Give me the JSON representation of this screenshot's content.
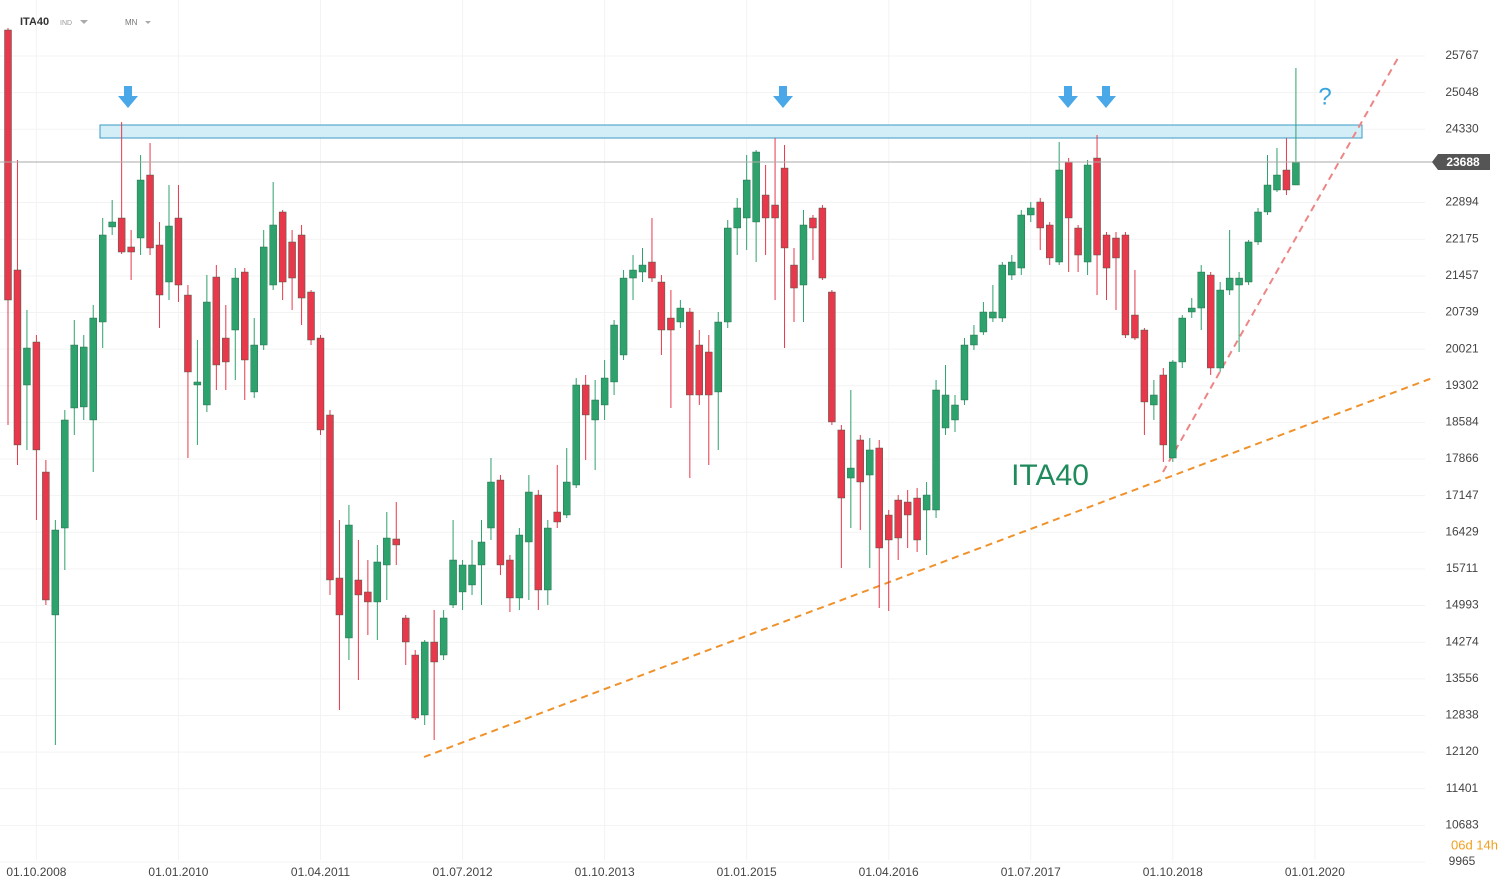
{
  "header": {
    "symbol": "ITA40",
    "market": "IND",
    "interval": "MN"
  },
  "chart_data": {
    "type": "candlestick",
    "x": [
      "01.07.2008",
      "01.08.2008",
      "01.09.2008",
      "01.10.2008",
      "01.11.2008",
      "01.12.2008",
      "01.01.2009",
      "01.02.2009",
      "01.03.2009",
      "01.04.2009",
      "01.05.2009",
      "01.06.2009",
      "01.07.2009",
      "01.08.2009",
      "01.09.2009",
      "01.10.2009",
      "01.11.2009",
      "01.12.2009",
      "01.01.2010",
      "01.02.2010",
      "01.03.2010",
      "01.04.2010",
      "01.05.2010",
      "01.06.2010",
      "01.07.2010",
      "01.08.2010",
      "01.09.2010",
      "01.10.2010",
      "01.11.2010",
      "01.12.2010",
      "01.01.2011",
      "01.02.2011",
      "01.03.2011",
      "01.04.2011",
      "01.05.2011",
      "01.06.2011",
      "01.07.2011",
      "01.08.2011",
      "01.09.2011",
      "01.10.2011",
      "01.11.2011",
      "01.12.2011",
      "01.01.2012",
      "01.02.2012",
      "01.03.2012",
      "01.04.2012",
      "01.05.2012",
      "01.06.2012",
      "01.07.2012",
      "01.08.2012",
      "01.09.2012",
      "01.10.2012",
      "01.11.2012",
      "01.12.2012",
      "01.01.2013",
      "01.02.2013",
      "01.03.2013",
      "01.04.2013",
      "01.05.2013",
      "01.06.2013",
      "01.07.2013",
      "01.08.2013",
      "01.09.2013",
      "01.10.2013",
      "01.11.2013",
      "01.12.2013",
      "01.01.2014",
      "01.02.2014",
      "01.03.2014",
      "01.04.2014",
      "01.05.2014",
      "01.06.2014",
      "01.07.2014",
      "01.08.2014",
      "01.09.2014",
      "01.10.2014",
      "01.11.2014",
      "01.12.2014",
      "01.01.2015",
      "01.02.2015",
      "01.03.2015",
      "01.04.2015",
      "01.05.2015",
      "01.06.2015",
      "01.07.2015",
      "01.08.2015",
      "01.09.2015",
      "01.10.2015",
      "01.11.2015",
      "01.12.2015",
      "01.01.2016",
      "01.02.2016",
      "01.03.2016",
      "01.04.2016",
      "01.05.2016",
      "01.06.2016",
      "01.07.2016",
      "01.08.2016",
      "01.09.2016",
      "01.10.2016",
      "01.11.2016",
      "01.12.2016",
      "01.01.2017",
      "01.02.2017",
      "01.03.2017",
      "01.04.2017",
      "01.05.2017",
      "01.06.2017",
      "01.07.2017",
      "01.08.2017",
      "01.09.2017",
      "01.10.2017",
      "01.11.2017",
      "01.12.2017",
      "01.01.2018",
      "01.02.2018",
      "01.03.2018",
      "01.04.2018",
      "01.05.2018",
      "01.06.2018",
      "01.07.2018",
      "01.08.2018",
      "01.09.2018",
      "01.10.2018",
      "01.11.2018",
      "01.12.2018",
      "01.01.2019",
      "01.02.2019",
      "01.03.2019",
      "01.04.2019",
      "01.05.2019",
      "01.06.2019",
      "01.07.2019",
      "01.08.2019",
      "01.09.2019",
      "01.10.2019",
      "01.11.2019"
    ],
    "open": [
      26277,
      21572,
      19317,
      20160,
      17611,
      14808,
      16513,
      18866,
      18886,
      18631,
      20552,
      22415,
      22591,
      22023,
      22199,
      23434,
      22062,
      21336,
      22591,
      21081,
      19317,
      18925,
      21434,
      20238,
      20395,
      21532,
      19180,
      20101,
      21277,
      22709,
      22121,
      22258,
      21140,
      20238,
      18729,
      15533,
      14357,
      15494,
      15259,
      15063,
      15788,
      16298,
      14749,
      14023,
      12847,
      14278,
      14023,
      15004,
      15259,
      15396,
      15788,
      16513,
      17454,
      15886,
      15141,
      16239,
      17160,
      15298,
      16827,
      16768,
      17356,
      19317,
      18631,
      18925,
      19376,
      19905,
      21414,
      21532,
      21728,
      21336,
      20630,
      20552,
      20748,
      20101,
      19964,
      19180,
      20552,
      22395,
      22591,
      22513,
      23042,
      22846,
      23571,
      21669,
      21277,
      22591,
      22787,
      21140,
      18435,
      17493,
      18239,
      17552,
      18082,
      16768,
      17062,
      17023,
      17101,
      16866,
      16866,
      18474,
      18631,
      19023,
      20101,
      20356,
      20630,
      20630,
      21473,
      21610,
      22650,
      22905,
      22454,
      21728,
      23689,
      22395,
      21728,
      23767,
      22258,
      22199,
      22258,
      20689,
      20395,
      18925,
      19513,
      17886,
      19768,
      20748,
      20826,
      21473,
      19650,
      21179,
      21277,
      21336,
      22121,
      22709,
      23140,
      23532,
      23238
    ],
    "high": [
      26316,
      23728,
      20787,
      20297,
      17847,
      16670,
      18827,
      20591,
      20297,
      20885,
      22591,
      22944,
      24473,
      22356,
      23826,
      24061,
      22513,
      23238,
      23238,
      21277,
      20199,
      21473,
      21669,
      20885,
      21610,
      21610,
      20630,
      22356,
      23297,
      22748,
      22356,
      22454,
      21179,
      20297,
      18827,
      16670,
      16964,
      16278,
      15886,
      16180,
      16827,
      17023,
      14808,
      14121,
      14317,
      14905,
      14905,
      16670,
      15886,
      16278,
      16670,
      17886,
      17552,
      15984,
      16513,
      17552,
      17258,
      16670,
      17749,
      18082,
      19454,
      19513,
      19415,
      19807,
      20591,
      21571,
      21865,
      22003,
      22591,
      21473,
      21179,
      20983,
      20826,
      20395,
      20297,
      20748,
      22552,
      22983,
      23826,
      23924,
      23630,
      24159,
      24022,
      22003,
      22748,
      22650,
      22846,
      21179,
      18533,
      19219,
      18337,
      18278,
      18239,
      16866,
      17160,
      17258,
      17297,
      17415,
      19415,
      19709,
      19121,
      20238,
      20493,
      20944,
      21277,
      21728,
      21866,
      22748,
      22905,
      22983,
      22513,
      24081,
      23767,
      22454,
      23728,
      24218,
      22317,
      22317,
      22317,
      21571,
      20434,
      19415,
      19650,
      19807,
      20689,
      21022,
      21669,
      21532,
      21336,
      22356,
      21532,
      22160,
      22787,
      23826,
      23963,
      24159,
      25532
    ],
    "low": [
      18533,
      17749,
      18043,
      16670,
      15004,
      12259,
      15690,
      18337,
      18631,
      17611,
      20042,
      22258,
      21885,
      21375,
      21866,
      21866,
      20434,
      20983,
      20944,
      17886,
      18141,
      18788,
      19219,
      19219,
      19415,
      19023,
      19062,
      20003,
      21179,
      20983,
      20787,
      20493,
      20101,
      18337,
      15200,
      12945,
      13925,
      13533,
      14415,
      14317,
      15102,
      15788,
      13827,
      12749,
      12651,
      12357,
      13925,
      14945,
      14905,
      15200,
      15004,
      16278,
      15592,
      14866,
      14905,
      15102,
      14905,
      15004,
      16513,
      16709,
      17297,
      17847,
      17650,
      18631,
      19121,
      19807,
      20983,
      21336,
      21336,
      19905,
      18866,
      20434,
      17493,
      18925,
      17749,
      18043,
      20434,
      21866,
      21964,
      21728,
      21866,
      20983,
      20042,
      20552,
      20552,
      21767,
      21375,
      18533,
      15729,
      16513,
      16474,
      15729,
      14945,
      14886,
      15886,
      16121,
      16043,
      15984,
      16709,
      18337,
      18396,
      18925,
      20003,
      20297,
      20552,
      20552,
      21375,
      21473,
      22513,
      21964,
      21669,
      21669,
      21532,
      21532,
      21473,
      21081,
      20983,
      20787,
      20238,
      20199,
      18337,
      18631,
      17807,
      17807,
      19650,
      20630,
      20395,
      19513,
      19572,
      21081,
      19964,
      21277,
      22062,
      22650,
      23101,
      23042,
      23238
    ],
    "close": [
      20983,
      18141,
      20042,
      18043,
      15102,
      16474,
      18631,
      20101,
      20062,
      20630,
      22258,
      22513,
      21924,
      21924,
      23336,
      22003,
      21081,
      22434,
      21277,
      19572,
      19376,
      20944,
      19709,
      19768,
      21414,
      19807,
      20101,
      22023,
      22454,
      21336,
      21414,
      21022,
      20199,
      18435,
      15494,
      14808,
      16572,
      15200,
      15063,
      15847,
      16317,
      16180,
      14278,
      12788,
      14278,
      13886,
      14749,
      15886,
      15788,
      15788,
      16239,
      17415,
      15788,
      15141,
      16376,
      17219,
      15298,
      16513,
      16631,
      17415,
      19317,
      18729,
      19023,
      19454,
      20493,
      21414,
      21571,
      21669,
      21414,
      20395,
      20395,
      20826,
      19121,
      19121,
      19121,
      20552,
      22395,
      22787,
      23336,
      23885,
      22591,
      22591,
      22003,
      21218,
      22454,
      22395,
      21414,
      18592,
      17101,
      17689,
      17415,
      18043,
      16121,
      16278,
      16317,
      16768,
      16278,
      17160,
      19219,
      19121,
      18925,
      20101,
      20297,
      20748,
      20748,
      21669,
      21728,
      22650,
      22787,
      22395,
      21807,
      23532,
      22591,
      21865,
      23630,
      21865,
      21610,
      21807,
      20297,
      20238,
      18984,
      19121,
      18141,
      19768,
      20630,
      20826,
      21532,
      19650,
      21179,
      21414,
      21414,
      22121,
      22709,
      23238,
      23434,
      23140,
      23688
    ],
    "up_color": "#2ea26c",
    "down_color": "#e8384b",
    "ylim": [
      9612,
      26865
    ],
    "yticks": [
      25767,
      25048,
      24330,
      22894,
      22175,
      21457,
      20739,
      20021,
      19302,
      18584,
      17866,
      17147,
      16429,
      15711,
      14993,
      14274,
      13556,
      12838,
      12120,
      11401,
      10683,
      9965
    ],
    "xticks": [
      "01.10.2008",
      "01.01.2010",
      "01.04.2011",
      "01.07.2012",
      "01.10.2013",
      "01.01.2015",
      "01.04.2016",
      "01.07.2017",
      "01.10.2018",
      "01.01.2020"
    ],
    "grid": true,
    "last_price": 23688,
    "annotation": "ITA40",
    "question": "?",
    "countdown": "06d 14h"
  }
}
